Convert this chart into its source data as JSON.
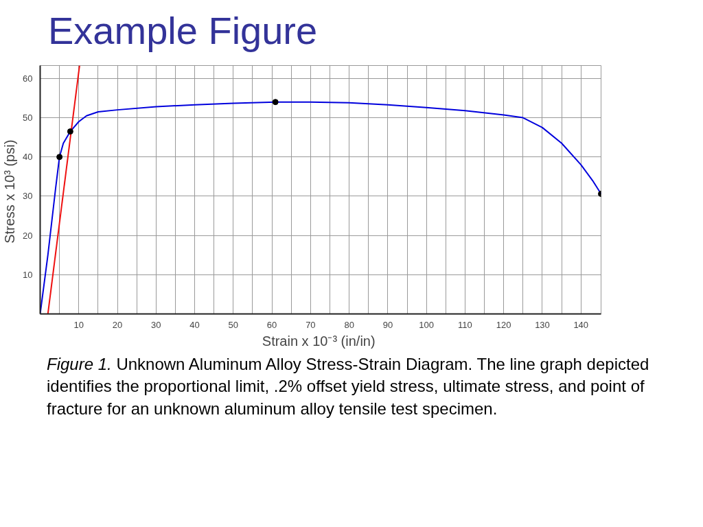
{
  "chart_data": {
    "type": "line",
    "title": "Example Figure",
    "xlabel": "Strain  x 10⁻³ (in/in)",
    "ylabel": "Stress  x 10³ (psi)",
    "annotations": [
      "Figure 1.",
      "Unknown Aluminum Alloy Stress-Strain Diagram. The line graph depicted identifies the proportional limit, .2% offset yield stress, ultimate stress, and point of fracture for an unknown aluminum alloy tensile test specimen."
    ],
    "series": [
      {
        "color": "#0000dd",
        "x": [
          0,
          2,
          4,
          5,
          6,
          7.8,
          10,
          12,
          15,
          20,
          30,
          40,
          50,
          60.9,
          70,
          80,
          90,
          100,
          110,
          120,
          125,
          130,
          135,
          140,
          143,
          145.2
        ],
        "values": [
          0,
          15,
          32,
          40,
          43.5,
          46.5,
          49,
          50.5,
          51.5,
          52,
          52.8,
          53.3,
          53.7,
          54,
          54,
          53.8,
          53.3,
          52.6,
          51.8,
          50.7,
          50,
          47.5,
          43.5,
          38,
          34,
          30.6
        ]
      },
      {
        "color": "#ee1111",
        "x": [
          2,
          10.2
        ],
        "values": [
          0,
          63.3
        ]
      },
      {
        "type": "scatter",
        "color": "#000000",
        "marker": "circle",
        "x": [
          5,
          7.8,
          60.9,
          145.2
        ],
        "values": [
          40,
          46.5,
          54,
          30.6
        ]
      }
    ],
    "xlim": [
      0,
      145.2
    ],
    "ylim": [
      0,
      63.3
    ],
    "xticks": [
      {
        "value": 5,
        "label": null
      },
      10,
      {
        "value": 15,
        "label": null
      },
      20,
      {
        "value": 25,
        "label": null
      },
      30,
      {
        "value": 35,
        "label": null
      },
      40,
      {
        "value": 45,
        "label": null
      },
      50,
      {
        "value": 55,
        "label": null
      },
      60,
      {
        "value": 65,
        "label": null
      },
      70,
      {
        "value": 75,
        "label": null
      },
      80,
      {
        "value": 85,
        "label": null
      },
      90,
      {
        "value": 95,
        "label": null
      },
      100,
      {
        "value": 105,
        "label": null
      },
      110,
      {
        "value": 115,
        "label": null
      },
      120,
      {
        "value": 125,
        "label": null
      },
      130,
      {
        "value": 135,
        "label": null
      },
      140
    ],
    "yticks": [
      10,
      20,
      30,
      40,
      50,
      60
    ],
    "grid": true
  }
}
